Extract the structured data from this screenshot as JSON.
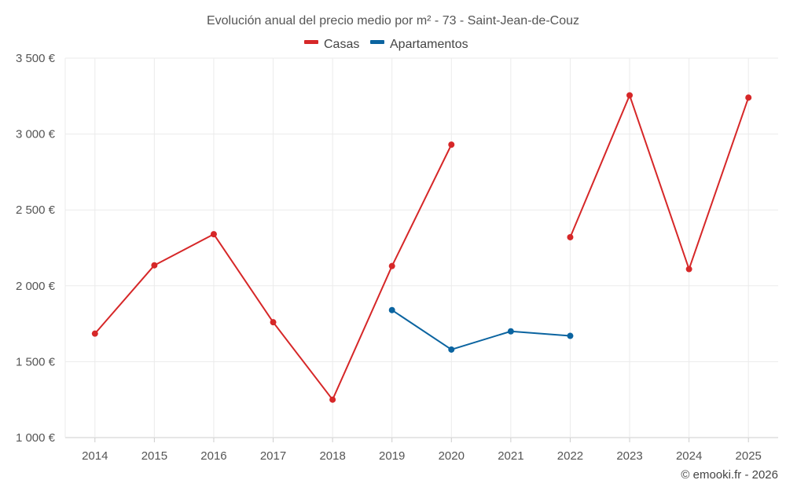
{
  "chart_data": {
    "type": "line",
    "title": "Evolución anual del precio medio por m² - 73 - Saint-Jean-de-Couz",
    "categories": [
      "2014",
      "2015",
      "2016",
      "2017",
      "2018",
      "2019",
      "2020",
      "2021",
      "2022",
      "2023",
      "2024",
      "2025"
    ],
    "ylim": [
      1000,
      3500
    ],
    "yticks": [
      1000,
      1500,
      2000,
      2500,
      3000,
      3500
    ],
    "ytick_labels": [
      "1 000 €",
      "1 500 €",
      "2 000 €",
      "2 500 €",
      "3 000 €",
      "3 500 €"
    ],
    "series": [
      {
        "name": "Casas",
        "color": "#d62728",
        "values": [
          1685,
          2135,
          2340,
          1760,
          1250,
          2130,
          2930,
          null,
          2320,
          3255,
          2110,
          3240
        ]
      },
      {
        "name": "Apartamentos",
        "color": "#0b64a0",
        "values": [
          null,
          null,
          null,
          null,
          null,
          1840,
          1580,
          1700,
          1670,
          null,
          null,
          null
        ]
      }
    ],
    "grid": true,
    "legend": "top-center",
    "credit": "© emooki.fr - 2026"
  }
}
